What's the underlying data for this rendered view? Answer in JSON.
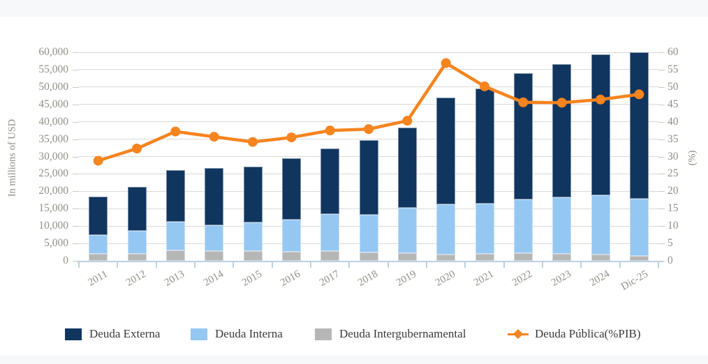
{
  "page": {
    "background": "#FFFFFF",
    "top_band_color": "#F7F8FA",
    "bottom_band_color": "#F7F8FA"
  },
  "colors": {
    "deuda_externa": "#10355F",
    "deuda_interna": "#95C7F3",
    "deuda_intergubernamental": "#B6B6B6",
    "deuda_publica_line": "#F6841F",
    "gridline": "#D9D9D9",
    "axis_text": "#8F8F88",
    "legend_text": "#3A3A3A",
    "x_axis_line": "#BCD0E4"
  },
  "chart_data": {
    "type": "bar",
    "subtype": "stacked-bar-with-line",
    "categories": [
      "2011",
      "2012",
      "2013",
      "2014",
      "2015",
      "2016",
      "2017",
      "2018",
      "2019",
      "2020",
      "2021",
      "2022",
      "2023",
      "2024",
      "Dic-25"
    ],
    "bar_series_bottom_to_top": [
      {
        "name": "Deuda Intergubernamental",
        "color": "#B6B6B6",
        "values": [
          2100,
          2000,
          3100,
          2800,
          2800,
          2600,
          2900,
          2500,
          2300,
          1900,
          2100,
          2300,
          2100,
          1900,
          1500
        ]
      },
      {
        "name": "Deuda Interna",
        "color": "#95C7F3",
        "values": [
          5300,
          6600,
          8100,
          7400,
          8200,
          9200,
          10500,
          10700,
          13000,
          14400,
          14400,
          15300,
          16100,
          16900,
          16300
        ]
      },
      {
        "name": "Deuda Externa",
        "color": "#10355F",
        "values": [
          11100,
          12600,
          14900,
          16400,
          16000,
          17600,
          18900,
          21500,
          23100,
          30600,
          33100,
          36300,
          38400,
          40500,
          42200
        ]
      }
    ],
    "bar_totals": [
      18500,
      21200,
      26100,
      26600,
      27000,
      29400,
      32300,
      34700,
      38400,
      46900,
      49600,
      53900,
      56600,
      59300,
      60000
    ],
    "line_series": {
      "name": "Deuda Pública(%PIB)",
      "color": "#F6841F",
      "axis": "right",
      "values": [
        28.8,
        32.3,
        37.2,
        35.7,
        34.2,
        35.5,
        37.5,
        37.9,
        40.3,
        56.9,
        50.2,
        45.6,
        45.5,
        46.4,
        47.9
      ]
    },
    "left_axis": {
      "title": "In millions of USD",
      "min": 0,
      "max": 60000,
      "step": 5000,
      "tick_labels": [
        "0",
        "5,000",
        "10,000",
        "15,000",
        "20,000",
        "25,000",
        "30,000",
        "35,000",
        "40,000",
        "45,000",
        "50,000",
        "55,000",
        "60,000"
      ]
    },
    "right_axis": {
      "title": "(%)",
      "min": 0,
      "max": 60,
      "step": 5,
      "tick_labels": [
        "0",
        "5",
        "10",
        "15",
        "20",
        "25",
        "30",
        "35",
        "40",
        "45",
        "50",
        "55",
        "60"
      ]
    },
    "grid": true,
    "legend_position": "bottom",
    "legend_order": [
      "Deuda Externa",
      "Deuda Interna",
      "Deuda Intergubernamental",
      "Deuda Pública(%PIB)"
    ]
  },
  "legend": {
    "items": [
      {
        "label": "Deuda Externa",
        "marker": "square",
        "color": "#10355F"
      },
      {
        "label": "Deuda Interna",
        "marker": "square",
        "color": "#95C7F3"
      },
      {
        "label": "Deuda Intergubernamental",
        "marker": "square",
        "color": "#B6B6B6"
      },
      {
        "label": "Deuda Pública(%PIB)",
        "marker": "line-diamond",
        "color": "#F6841F"
      }
    ]
  }
}
